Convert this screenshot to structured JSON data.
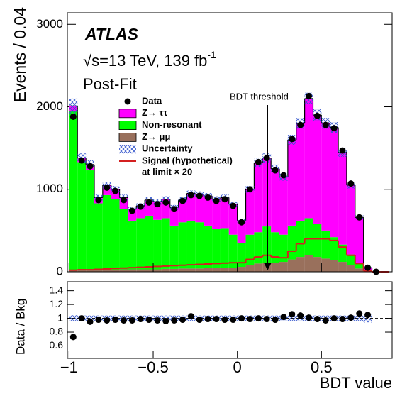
{
  "chart_data": [
    {
      "type": "histogram",
      "ylabel": "Events / 0.04",
      "experiment": "ATLAS",
      "energy_label": "√s=13 TeV, 139 fb",
      "energy_label_sup": "-1",
      "fit_label": "Post-Fit",
      "annotation": {
        "text": "BDT threshold",
        "x": 0.18
      },
      "xlim": [
        -1.01,
        0.92
      ],
      "ylim": [
        0,
        3140
      ],
      "yticks": [
        0,
        1000,
        2000,
        3000
      ],
      "bins": [
        -1,
        -0.95,
        -0.9,
        -0.85,
        -0.8,
        -0.75,
        -0.7,
        -0.65,
        -0.6,
        -0.55,
        -0.5,
        -0.45,
        -0.4,
        -0.35,
        -0.3,
        -0.25,
        -0.2,
        -0.15,
        -0.1,
        -0.05,
        0,
        0.05,
        0.1,
        0.15,
        0.2,
        0.25,
        0.3,
        0.35,
        0.4,
        0.45,
        0.5,
        0.55,
        0.6,
        0.65,
        0.7,
        0.75,
        0.8,
        0.85,
        0.9
      ],
      "series": [
        {
          "name": "Data",
          "role": "data",
          "color": "#000000",
          "values": [
            1880,
            1350,
            1280,
            870,
            1020,
            980,
            870,
            740,
            790,
            840,
            820,
            840,
            760,
            860,
            930,
            920,
            900,
            860,
            880,
            800,
            600,
            1000,
            1330,
            1380,
            1230,
            1170,
            1610,
            1780,
            2130,
            1890,
            1780,
            1740,
            1470,
            1070,
            660,
            50,
            0,
            null
          ]
        },
        {
          "name": "Z→ ττ",
          "role": "stack",
          "color": "#ff00ff",
          "values": [
            60,
            50,
            70,
            70,
            120,
            120,
            140,
            140,
            150,
            190,
            220,
            230,
            220,
            270,
            330,
            340,
            360,
            360,
            370,
            370,
            270,
            550,
            840,
            830,
            770,
            700,
            1040,
            1180,
            1450,
            1320,
            1300,
            1330,
            1120,
            840,
            560,
            40,
            0,
            0
          ]
        },
        {
          "name": "Non-resonant",
          "role": "stack",
          "color": "#00ff00",
          "values": [
            1930,
            1310,
            1210,
            810,
            905,
            855,
            730,
            590,
            620,
            650,
            600,
            615,
            525,
            560,
            580,
            560,
            515,
            475,
            480,
            400,
            290,
            370,
            380,
            440,
            370,
            330,
            410,
            440,
            450,
            400,
            340,
            280,
            210,
            130,
            60,
            5,
            0,
            0
          ]
        },
        {
          "name": "Z→ μμ",
          "role": "stack",
          "color": "#99705c",
          "values": [
            20,
            20,
            20,
            20,
            25,
            25,
            30,
            30,
            30,
            30,
            30,
            35,
            35,
            40,
            40,
            40,
            45,
            45,
            50,
            50,
            60,
            80,
            100,
            110,
            110,
            120,
            150,
            180,
            200,
            180,
            160,
            140,
            120,
            80,
            40,
            5,
            0,
            0
          ]
        },
        {
          "name": "Uncertainty",
          "role": "uncertainty",
          "color": "#3355cc",
          "values": [
            90,
            55,
            50,
            35,
            40,
            40,
            35,
            30,
            30,
            35,
            35,
            35,
            30,
            35,
            35,
            35,
            35,
            35,
            35,
            30,
            25,
            40,
            50,
            55,
            50,
            45,
            60,
            65,
            70,
            70,
            65,
            65,
            55,
            40,
            25,
            5,
            0,
            0
          ]
        },
        {
          "name": "Signal (hypothetical)",
          "name_line2": "at limit × 20",
          "role": "line",
          "color": "#d42020",
          "values": [
            20,
            25,
            25,
            30,
            35,
            40,
            45,
            50,
            55,
            60,
            65,
            70,
            75,
            80,
            85,
            90,
            95,
            100,
            105,
            110,
            110,
            150,
            180,
            200,
            180,
            170,
            250,
            340,
            400,
            400,
            400,
            380,
            300,
            200,
            100,
            10,
            0,
            0
          ]
        }
      ]
    },
    {
      "type": "scatter",
      "ylabel": "Data / Bkg",
      "xlabel": "BDT value",
      "xlim": [
        -1.01,
        0.92
      ],
      "ylim": [
        0.42,
        1.53
      ],
      "xticks": [
        {
          "value": -1,
          "label": "−1"
        },
        {
          "value": -0.5,
          "label": "−0.5"
        },
        0,
        0.5
      ],
      "yticks": [
        0.6,
        0.8,
        1,
        1.2,
        1.4
      ],
      "reference": 1,
      "color": "#000000",
      "band_color": "#3355cc",
      "x": [
        -0.975,
        -0.925,
        -0.875,
        -0.825,
        -0.775,
        -0.725,
        -0.675,
        -0.625,
        -0.575,
        -0.525,
        -0.475,
        -0.425,
        -0.375,
        -0.325,
        -0.275,
        -0.225,
        -0.175,
        -0.125,
        -0.075,
        -0.025,
        0.025,
        0.075,
        0.125,
        0.175,
        0.225,
        0.275,
        0.325,
        0.375,
        0.425,
        0.475,
        0.525,
        0.575,
        0.625,
        0.675,
        0.725,
        0.775,
        0.825,
        0.875
      ],
      "values": [
        0.73,
        1.0,
        0.95,
        0.98,
        0.97,
        0.98,
        0.97,
        0.97,
        0.99,
        0.98,
        0.97,
        0.96,
        0.97,
        0.98,
        1.03,
        0.98,
        0.99,
        0.99,
        0.98,
        0.98,
        1.0,
        0.99,
        1.0,
        0.99,
        0.98,
        1.02,
        1.06,
        1.04,
        1.01,
        0.99,
        0.97,
        1.0,
        0.99,
        1.01,
        1.07,
        1.05,
        null,
        null
      ],
      "uncertainty": [
        0.045,
        0.04,
        0.04,
        0.04,
        0.04,
        0.04,
        0.04,
        0.04,
        0.04,
        0.04,
        0.04,
        0.04,
        0.04,
        0.04,
        0.04,
        0.04,
        0.04,
        0.04,
        0.04,
        0.04,
        0.04,
        0.04,
        0.04,
        0.04,
        0.04,
        0.04,
        0.04,
        0.04,
        0.04,
        0.04,
        0.04,
        0.04,
        0.04,
        0.04,
        0.04,
        0.06,
        null,
        null
      ]
    }
  ]
}
